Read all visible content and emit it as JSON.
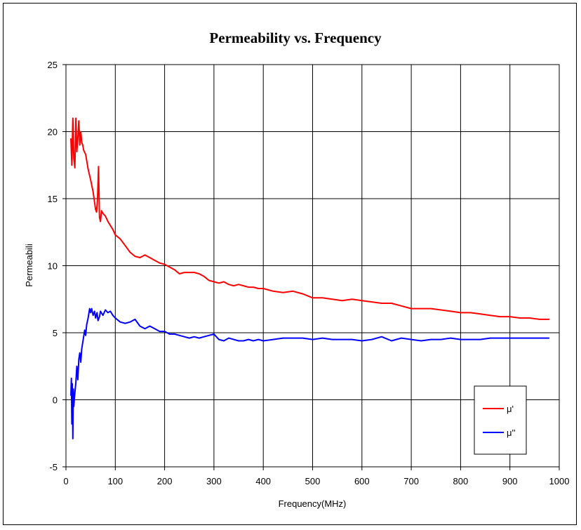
{
  "chart_data": {
    "type": "line",
    "title": "Permeability vs. Frequency",
    "xlabel": "Frequency(MHz)",
    "ylabel": "Permeabili",
    "xlim": [
      0,
      1000
    ],
    "ylim": [
      -5,
      25
    ],
    "xticks": [
      0,
      100,
      200,
      300,
      400,
      500,
      600,
      700,
      800,
      900,
      1000
    ],
    "yticks": [
      -5,
      0,
      5,
      10,
      15,
      20,
      25
    ],
    "grid": true,
    "legend_position": "bottom-right",
    "series": [
      {
        "name": "μ'",
        "color": "#ff0000",
        "x": [
          10,
          12,
          14,
          16,
          18,
          20,
          22,
          24,
          26,
          28,
          30,
          32,
          34,
          36,
          40,
          45,
          50,
          55,
          60,
          62,
          64,
          66,
          68,
          70,
          72,
          75,
          80,
          85,
          90,
          95,
          100,
          110,
          120,
          130,
          140,
          150,
          160,
          170,
          180,
          190,
          200,
          210,
          220,
          230,
          240,
          250,
          260,
          270,
          280,
          290,
          300,
          310,
          320,
          330,
          340,
          350,
          360,
          370,
          380,
          390,
          400,
          420,
          440,
          460,
          480,
          500,
          520,
          540,
          560,
          580,
          600,
          620,
          640,
          660,
          680,
          700,
          720,
          740,
          760,
          780,
          800,
          820,
          840,
          860,
          880,
          900,
          920,
          940,
          960,
          980
        ],
        "y": [
          19.5,
          17.5,
          21,
          18,
          17.3,
          21,
          18.5,
          19.5,
          20.8,
          19,
          20,
          19.2,
          19,
          18.6,
          18.3,
          17.2,
          16.4,
          15.5,
          14.2,
          14,
          15,
          17.4,
          13.6,
          13.3,
          14.1,
          13.9,
          13.7,
          13.3,
          13,
          12.7,
          12.3,
          12,
          11.5,
          11,
          10.7,
          10.6,
          10.8,
          10.6,
          10.4,
          10.2,
          10.1,
          9.9,
          9.7,
          9.4,
          9.5,
          9.5,
          9.5,
          9.4,
          9.2,
          8.9,
          8.8,
          8.7,
          8.8,
          8.6,
          8.5,
          8.6,
          8.5,
          8.4,
          8.4,
          8.3,
          8.3,
          8.1,
          8.0,
          8.1,
          7.9,
          7.6,
          7.6,
          7.5,
          7.4,
          7.5,
          7.4,
          7.3,
          7.2,
          7.2,
          7.0,
          6.8,
          6.8,
          6.8,
          6.7,
          6.6,
          6.5,
          6.5,
          6.4,
          6.3,
          6.2,
          6.2,
          6.1,
          6.1,
          6.0,
          6.0
        ]
      },
      {
        "name": "μ''",
        "color": "#0000ff",
        "x": [
          10,
          11,
          12,
          13,
          14,
          15,
          16,
          17,
          18,
          20,
          22,
          24,
          26,
          28,
          30,
          32,
          35,
          38,
          40,
          42,
          45,
          48,
          50,
          52,
          55,
          58,
          60,
          63,
          65,
          68,
          70,
          75,
          80,
          85,
          90,
          95,
          100,
          110,
          120,
          130,
          140,
          150,
          160,
          170,
          180,
          190,
          200,
          210,
          220,
          230,
          240,
          250,
          260,
          270,
          280,
          290,
          300,
          310,
          320,
          330,
          340,
          350,
          360,
          370,
          380,
          390,
          400,
          420,
          440,
          460,
          480,
          500,
          520,
          540,
          560,
          580,
          600,
          620,
          640,
          660,
          680,
          700,
          720,
          740,
          760,
          780,
          800,
          820,
          840,
          860,
          880,
          900,
          920,
          940,
          960,
          980
        ],
        "y": [
          0.3,
          1.6,
          -1.8,
          1.2,
          -2.9,
          0.8,
          -0.5,
          0.1,
          0.5,
          1.3,
          2.5,
          1.5,
          3,
          3.5,
          2.8,
          3.8,
          4.5,
          5.2,
          4.8,
          5.6,
          6.1,
          6.8,
          6.5,
          6.8,
          6.3,
          6.6,
          6.1,
          6.5,
          5.9,
          6.2,
          6.6,
          6.3,
          6.7,
          6.5,
          6.6,
          6.3,
          6.1,
          5.8,
          5.7,
          5.8,
          6.0,
          5.5,
          5.3,
          5.5,
          5.3,
          5.1,
          5.1,
          4.9,
          4.9,
          4.8,
          4.7,
          4.6,
          4.7,
          4.6,
          4.7,
          4.8,
          4.9,
          4.5,
          4.4,
          4.6,
          4.5,
          4.4,
          4.4,
          4.5,
          4.4,
          4.5,
          4.4,
          4.5,
          4.6,
          4.6,
          4.6,
          4.5,
          4.6,
          4.5,
          4.5,
          4.5,
          4.4,
          4.5,
          4.7,
          4.4,
          4.6,
          4.5,
          4.4,
          4.5,
          4.5,
          4.6,
          4.5,
          4.5,
          4.5,
          4.6,
          4.6,
          4.6,
          4.6,
          4.6,
          4.6,
          4.6
        ]
      }
    ]
  }
}
